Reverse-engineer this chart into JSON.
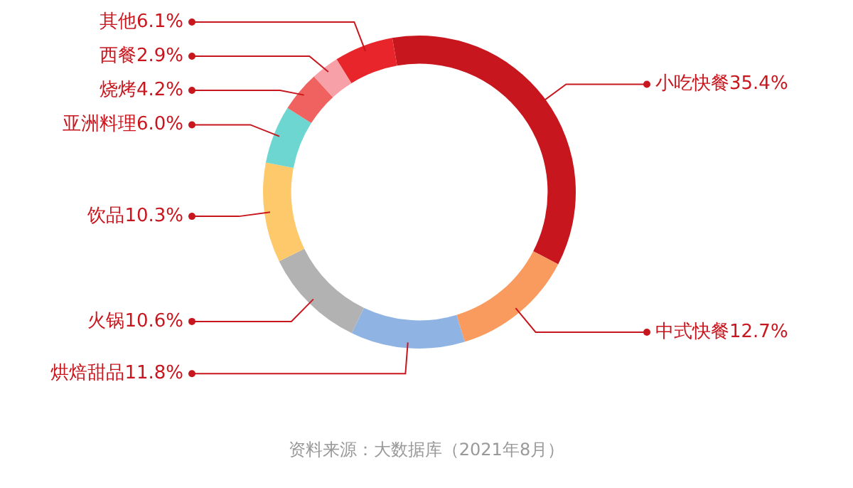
{
  "chart_data": {
    "type": "donut",
    "categories": [
      "小吃快餐",
      "中式快餐",
      "烘焙甜品",
      "火锅",
      "饮品",
      "亚洲料理",
      "烧烤",
      "西餐",
      "其他"
    ],
    "values": [
      35.4,
      12.7,
      11.8,
      10.6,
      10.3,
      6.0,
      4.2,
      2.9,
      6.1
    ],
    "value_labels": [
      "35.4%",
      "12.7%",
      "11.8%",
      "10.6%",
      "10.3%",
      "6.0%",
      "4.2%",
      "2.9%",
      "6.1%"
    ],
    "colors": [
      "#c8161e",
      "#f99a5e",
      "#8fb4e3",
      "#b2b2b2",
      "#fdc96a",
      "#6dd6d0",
      "#f0625f",
      "#f7a0a8",
      "#e8252a"
    ],
    "data_labels": true,
    "legend": false,
    "annotations": [
      "资料来源：大数据库（2021年8月）"
    ]
  }
}
